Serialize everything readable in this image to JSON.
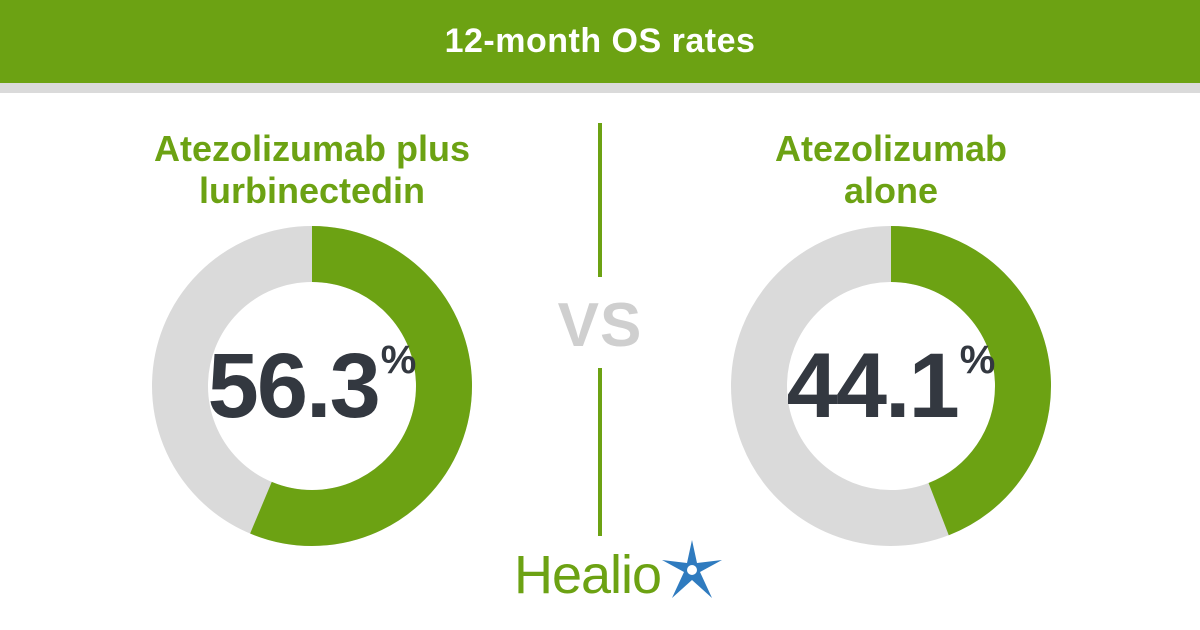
{
  "header": {
    "title": "12-month OS rates"
  },
  "divider": {
    "label": "VS"
  },
  "brand": {
    "name": "Healio",
    "icon": "star-burst-icon"
  },
  "colors": {
    "accent": "#6ca213",
    "track": "#dadada",
    "value_text": "#333840",
    "vs_text": "#cfcfcf",
    "star_blue": "#2f7bbf"
  },
  "chart_data": [
    {
      "type": "pie",
      "label": "Atezolizumab plus\nlurbinectedin",
      "value": 56.3,
      "value_display": "56.3",
      "unit": "%",
      "max": 100
    },
    {
      "type": "pie",
      "label": "Atezolizumab\nalone",
      "value": 44.1,
      "value_display": "44.1",
      "unit": "%",
      "max": 100
    }
  ]
}
